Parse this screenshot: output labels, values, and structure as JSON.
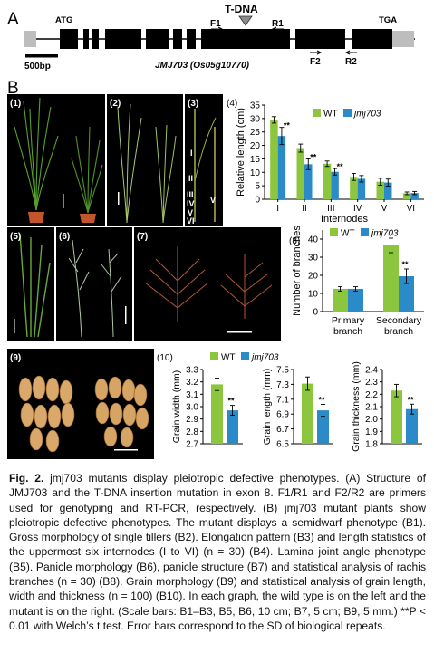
{
  "panelA": {
    "label": "A",
    "atg": "ATG",
    "tga": "TGA",
    "tdna": "T-DNA",
    "f1": "F1",
    "r1": "R1",
    "f2": "F2",
    "r2": "R2",
    "scale": "500bp",
    "gene": "JMJ703 (Os05g10770)"
  },
  "panelB": {
    "label": "B",
    "photos": [
      "(1)",
      "(2)",
      "(3)",
      "(5)",
      "(6)",
      "(7)",
      "(9)"
    ],
    "internode_labels": [
      "I",
      "II",
      "III",
      "IV",
      "V",
      "VI",
      "V"
    ]
  },
  "legend": {
    "wt": "WT",
    "mut": "jmj703"
  },
  "sig": "**",
  "colors": {
    "wt": "#8cc63f",
    "mut": "#2b8bc8"
  },
  "chart_data": [
    {
      "type": "bar",
      "panel": "(4)",
      "categories": [
        "I",
        "II",
        "III",
        "IV",
        "V",
        "VI"
      ],
      "series": [
        {
          "name": "WT",
          "values": [
            29.5,
            19,
            13.2,
            8.3,
            6.5,
            2.2
          ],
          "errors": [
            1.2,
            1.5,
            1.0,
            1.3,
            1.3,
            0.5
          ]
        },
        {
          "name": "jmj703",
          "values": [
            23.5,
            13,
            10.2,
            7.6,
            6.2,
            2.3
          ],
          "errors": [
            3.2,
            2.0,
            1.2,
            1.2,
            1.3,
            0.6
          ]
        }
      ],
      "significant": [
        0,
        1,
        2
      ],
      "ylabel": "Relative length (cm)",
      "xlabel": "Internodes",
      "ylim": [
        0,
        35
      ],
      "yticks": [
        0,
        5,
        10,
        15,
        20,
        25,
        30,
        35
      ]
    },
    {
      "type": "bar",
      "panel": "(8)",
      "categories": [
        "Primary branch",
        "Secondary branch"
      ],
      "category_lines": [
        [
          "Primary",
          "branch"
        ],
        [
          "Secondary",
          "branch"
        ]
      ],
      "series": [
        {
          "name": "WT",
          "values": [
            12.5,
            36.5
          ],
          "errors": [
            1.2,
            4.0
          ]
        },
        {
          "name": "jmj703",
          "values": [
            12.5,
            19.5
          ],
          "errors": [
            1.2,
            4.0
          ]
        }
      ],
      "significant": [
        1
      ],
      "ylabel": "Number of branches",
      "xlabel": "",
      "ylim": [
        0,
        45
      ],
      "yticks": [
        0,
        10,
        20,
        30,
        40
      ]
    },
    {
      "type": "bar",
      "panel": "(10)",
      "categories": [
        "WT",
        "jmj703"
      ],
      "values": [
        3.18,
        2.97
      ],
      "errors": [
        0.05,
        0.04
      ],
      "significant": [
        1
      ],
      "ylabel": "Grain width (mm)",
      "ylim": [
        2.7,
        3.3
      ],
      "yticks": [
        "2.7",
        "2.8",
        "2.9",
        "3.0",
        "3.1",
        "3.2",
        "3.3"
      ]
    },
    {
      "type": "bar",
      "panel": "",
      "categories": [
        "WT",
        "jmj703"
      ],
      "values": [
        7.31,
        6.95
      ],
      "errors": [
        0.09,
        0.08
      ],
      "significant": [
        1
      ],
      "ylabel": "Grain length (mm)",
      "ylim": [
        6.5,
        7.5
      ],
      "yticks": [
        "6.5",
        "6.7",
        "6.9",
        "7.1",
        "7.3",
        "7.5"
      ]
    },
    {
      "type": "bar",
      "panel": "",
      "categories": [
        "WT",
        "jmj703"
      ],
      "values": [
        2.23,
        2.08
      ],
      "errors": [
        0.05,
        0.04
      ],
      "significant": [
        1
      ],
      "ylabel": "Grain thickness (mm)",
      "ylim": [
        1.8,
        2.4
      ],
      "yticks": [
        "1.8",
        "1.9",
        "2.0",
        "2.1",
        "2.2",
        "2.3",
        "2.4"
      ]
    }
  ],
  "caption": {
    "figlabel": "Fig. 2.",
    "text": "jmj703 mutants display pleiotropic defective phenotypes. (A) Structure of JMJ703 and the T-DNA insertion mutation in exon 8. F1/R1 and F2/R2 are primers used for genotyping and RT-PCR, respectively. (B) jmj703 mutant plants show pleiotropic defective phenotypes. The mutant displays a semidwarf phenotype (B1). Gross morphology of single tillers (B2). Elongation pattern (B3) and length statistics of the uppermost six internodes (I to VI) (n = 30) (B4). Lamina joint angle phenotype (B5). Panicle morphology (B6), panicle structure (B7) and statistical analysis of rachis branches (n = 30) (B8). Grain morphology (B9) and statistical analysis of grain length, width and thickness (n = 100) (B10). In each graph, the wild type is on the left and the mutant is on the right. (Scale bars: B1–B3, B5, B6, 10 cm; B7, 5 cm; B9, 5 mm.) **P < 0.01 with Welch’s t test. Error bars correspond to the SD of biological repeats."
  }
}
